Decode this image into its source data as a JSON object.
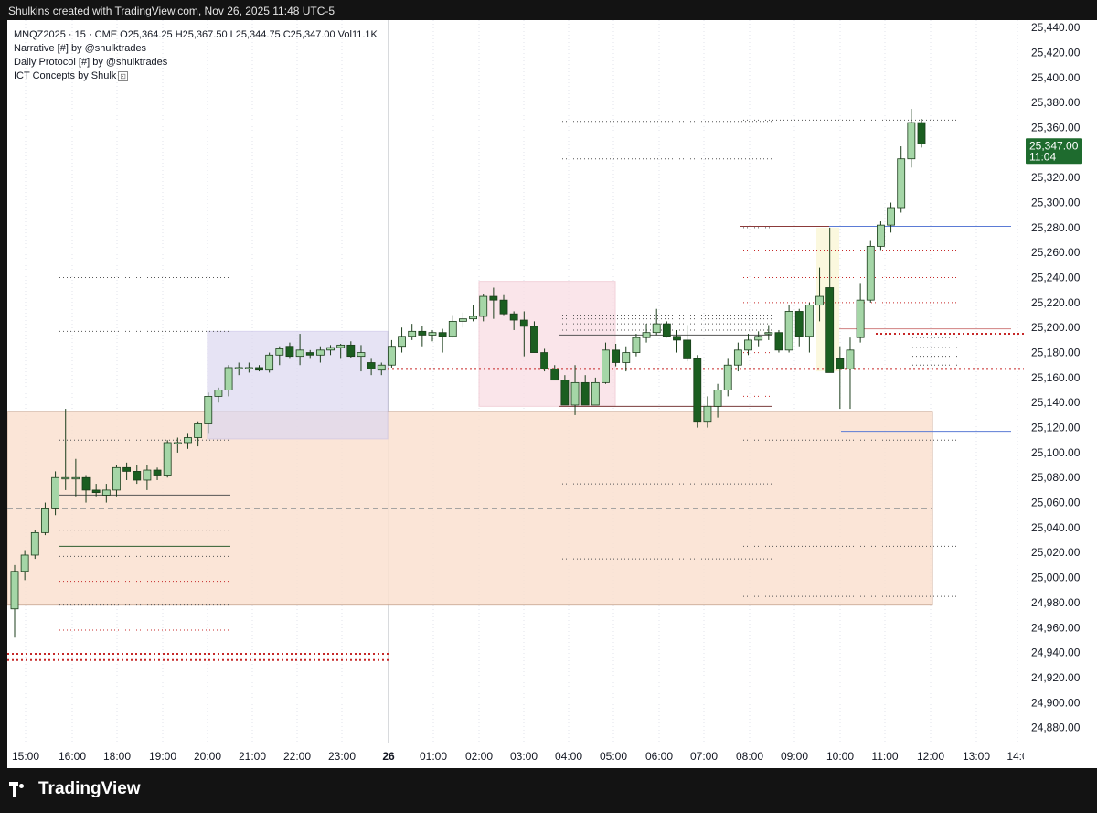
{
  "header": {
    "caption": "Shulkins created with TradingView.com, Nov 26, 2025 11:48 UTC-5"
  },
  "legend": {
    "line1": "MNQZ2025 · 15 · CME  O25,364.25  H25,367.50  L25,344.75  C25,347.00  Vol11.1K",
    "line2": "Narrative [#] by @shulktrades",
    "line3": "Daily Protocol [#] by @shulktrades",
    "line4": "ICT Concepts by Shulk"
  },
  "price_badge": {
    "price": "25,347.00",
    "countdown": "11:04",
    "color": "#1e6b2e"
  },
  "brand": {
    "name": "TradingView"
  },
  "colors": {
    "bull": "#a5d6a7",
    "bear": "#1b5e20",
    "red_dotted": "#c62828",
    "blue_level": "#5b7bd5"
  },
  "chart_data": {
    "type": "candlestick",
    "symbol": "MNQZ2025",
    "interval": "15",
    "x_ticks": [
      "15:00",
      "16:00",
      "18:00",
      "19:00",
      "20:00",
      "21:00",
      "22:00",
      "23:00",
      "26",
      "01:00",
      "02:00",
      "03:00",
      "04:00",
      "05:00",
      "06:00",
      "07:00",
      "08:00",
      "09:00",
      "10:00",
      "11:00",
      "12:00",
      "13:00",
      "14:0"
    ],
    "y_ticks": [
      25440,
      25420,
      25400,
      25380,
      25360,
      25340,
      25320,
      25300,
      25280,
      25260,
      25240,
      25220,
      25200,
      25180,
      25160,
      25140,
      25120,
      25100,
      25080,
      25060,
      25040,
      25020,
      25000,
      24980,
      24960,
      24940,
      24920,
      24900,
      24880
    ],
    "y_tick_labels": [
      "25,440.00",
      "25,420.00",
      "25,400.00",
      "25,380.00",
      "25,360.00",
      "25,340.00",
      "25,320.00",
      "25,300.00",
      "25,280.00",
      "25,260.00",
      "25,240.00",
      "25,220.00",
      "25,200.00",
      "25,180.00",
      "25,160.00",
      "25,140.00",
      "25,120.00",
      "25,100.00",
      "25,080.00",
      "25,060.00",
      "25,040.00",
      "25,020.00",
      "25,000.00",
      "24,980.00",
      "24,960.00",
      "24,940.00",
      "24,920.00",
      "24,900.00",
      "24,880.00"
    ],
    "ylim": [
      24868,
      25446
    ],
    "candles": [
      [
        24975,
        25010,
        24952,
        25005
      ],
      [
        25005,
        25022,
        24998,
        25018
      ],
      [
        25018,
        25038,
        25015,
        25036
      ],
      [
        25036,
        25060,
        25034,
        25055
      ],
      [
        25055,
        25085,
        25050,
        25080
      ],
      [
        25080,
        25135,
        25070,
        25080
      ],
      [
        25080,
        25095,
        25065,
        25080
      ],
      [
        25080,
        25082,
        25060,
        25070
      ],
      [
        25070,
        25075,
        25065,
        25068
      ],
      [
        25066,
        25075,
        25060,
        25070
      ],
      [
        25070,
        25090,
        25065,
        25088
      ],
      [
        25088,
        25092,
        25078,
        25085
      ],
      [
        25085,
        25090,
        25075,
        25078
      ],
      [
        25078,
        25090,
        25070,
        25086
      ],
      [
        25086,
        25088,
        25078,
        25082
      ],
      [
        25082,
        25110,
        25080,
        25108
      ],
      [
        25108,
        25112,
        25100,
        25108
      ],
      [
        25108,
        25115,
        25103,
        25112
      ],
      [
        25112,
        25125,
        25105,
        25123
      ],
      [
        25123,
        25148,
        25115,
        25145
      ],
      [
        25145,
        25152,
        25140,
        25150
      ],
      [
        25150,
        25170,
        25145,
        25168
      ],
      [
        25168,
        25172,
        25162,
        25168
      ],
      [
        25168,
        25172,
        25164,
        25168
      ],
      [
        25168,
        25170,
        25165,
        25166
      ],
      [
        25166,
        25180,
        25164,
        25178
      ],
      [
        25178,
        25185,
        25170,
        25183
      ],
      [
        25185,
        25188,
        25175,
        25177
      ],
      [
        25177,
        25195,
        25170,
        25182
      ],
      [
        25180,
        25182,
        25175,
        25178
      ],
      [
        25178,
        25185,
        25172,
        25182
      ],
      [
        25182,
        25186,
        25178,
        25184
      ],
      [
        25184,
        25187,
        25175,
        25186
      ],
      [
        25186,
        25189,
        25176,
        25177
      ],
      [
        25177,
        25186,
        25165,
        25180
      ],
      [
        25172,
        25175,
        25162,
        25167
      ],
      [
        25166,
        25172,
        25162,
        25170
      ],
      [
        25170,
        25190,
        25168,
        25185
      ],
      [
        25185,
        25200,
        25180,
        25193
      ],
      [
        25193,
        25203,
        25190,
        25197
      ],
      [
        25197,
        25201,
        25185,
        25194
      ],
      [
        25194,
        25198,
        25189,
        25196
      ],
      [
        25196,
        25199,
        25180,
        25193
      ],
      [
        25193,
        25210,
        25192,
        25205
      ],
      [
        25205,
        25212,
        25200,
        25207
      ],
      [
        25207,
        25218,
        25205,
        25209
      ],
      [
        25209,
        25227,
        25205,
        25225
      ],
      [
        25225,
        25232,
        25207,
        25222
      ],
      [
        25222,
        25226,
        25210,
        25211
      ],
      [
        25211,
        25213,
        25198,
        25206
      ],
      [
        25206,
        25213,
        25177,
        25201
      ],
      [
        25201,
        25205,
        25180,
        25180
      ],
      [
        25180,
        25183,
        25165,
        25167
      ],
      [
        25167,
        25170,
        25158,
        25158
      ],
      [
        25158,
        25162,
        25138,
        25138
      ],
      [
        25138,
        25170,
        25130,
        25156
      ],
      [
        25156,
        25162,
        25143,
        25138
      ],
      [
        25138,
        25160,
        25138,
        25156
      ],
      [
        25156,
        25188,
        25155,
        25182
      ],
      [
        25182,
        25187,
        25169,
        25172
      ],
      [
        25172,
        25185,
        25165,
        25180
      ],
      [
        25180,
        25195,
        25177,
        25192
      ],
      [
        25192,
        25203,
        25188,
        25196
      ],
      [
        25196,
        25215,
        25194,
        25203
      ],
      [
        25203,
        25205,
        25192,
        25193
      ],
      [
        25193,
        25198,
        25180,
        25190
      ],
      [
        25190,
        25202,
        25173,
        25175
      ],
      [
        25175,
        25178,
        25120,
        25125
      ],
      [
        25125,
        25145,
        25120,
        25137
      ],
      [
        25137,
        25155,
        25128,
        25150
      ],
      [
        25150,
        25175,
        25145,
        25170
      ],
      [
        25170,
        25188,
        25165,
        25182
      ],
      [
        25182,
        25195,
        25178,
        25190
      ],
      [
        25190,
        25197,
        25185,
        25193
      ],
      [
        25195,
        25202,
        25190,
        25196
      ],
      [
        25196,
        25198,
        25180,
        25182
      ],
      [
        25182,
        25218,
        25180,
        25213
      ],
      [
        25213,
        25215,
        25185,
        25193
      ],
      [
        25193,
        25220,
        25180,
        25218
      ],
      [
        25218,
        25248,
        25205,
        25225
      ],
      [
        25232,
        25280,
        25165,
        25164
      ],
      [
        25175,
        25185,
        25135,
        25167
      ],
      [
        25167,
        25192,
        25135,
        25182
      ],
      [
        25192,
        25235,
        25188,
        25222
      ],
      [
        25222,
        25270,
        25220,
        25265
      ],
      [
        25265,
        25285,
        25262,
        25282
      ],
      [
        25282,
        25300,
        25276,
        25296
      ],
      [
        25296,
        25345,
        25292,
        25335
      ],
      [
        25335,
        25375,
        25328,
        25364
      ],
      [
        25364,
        25367,
        25344,
        25347
      ]
    ]
  }
}
